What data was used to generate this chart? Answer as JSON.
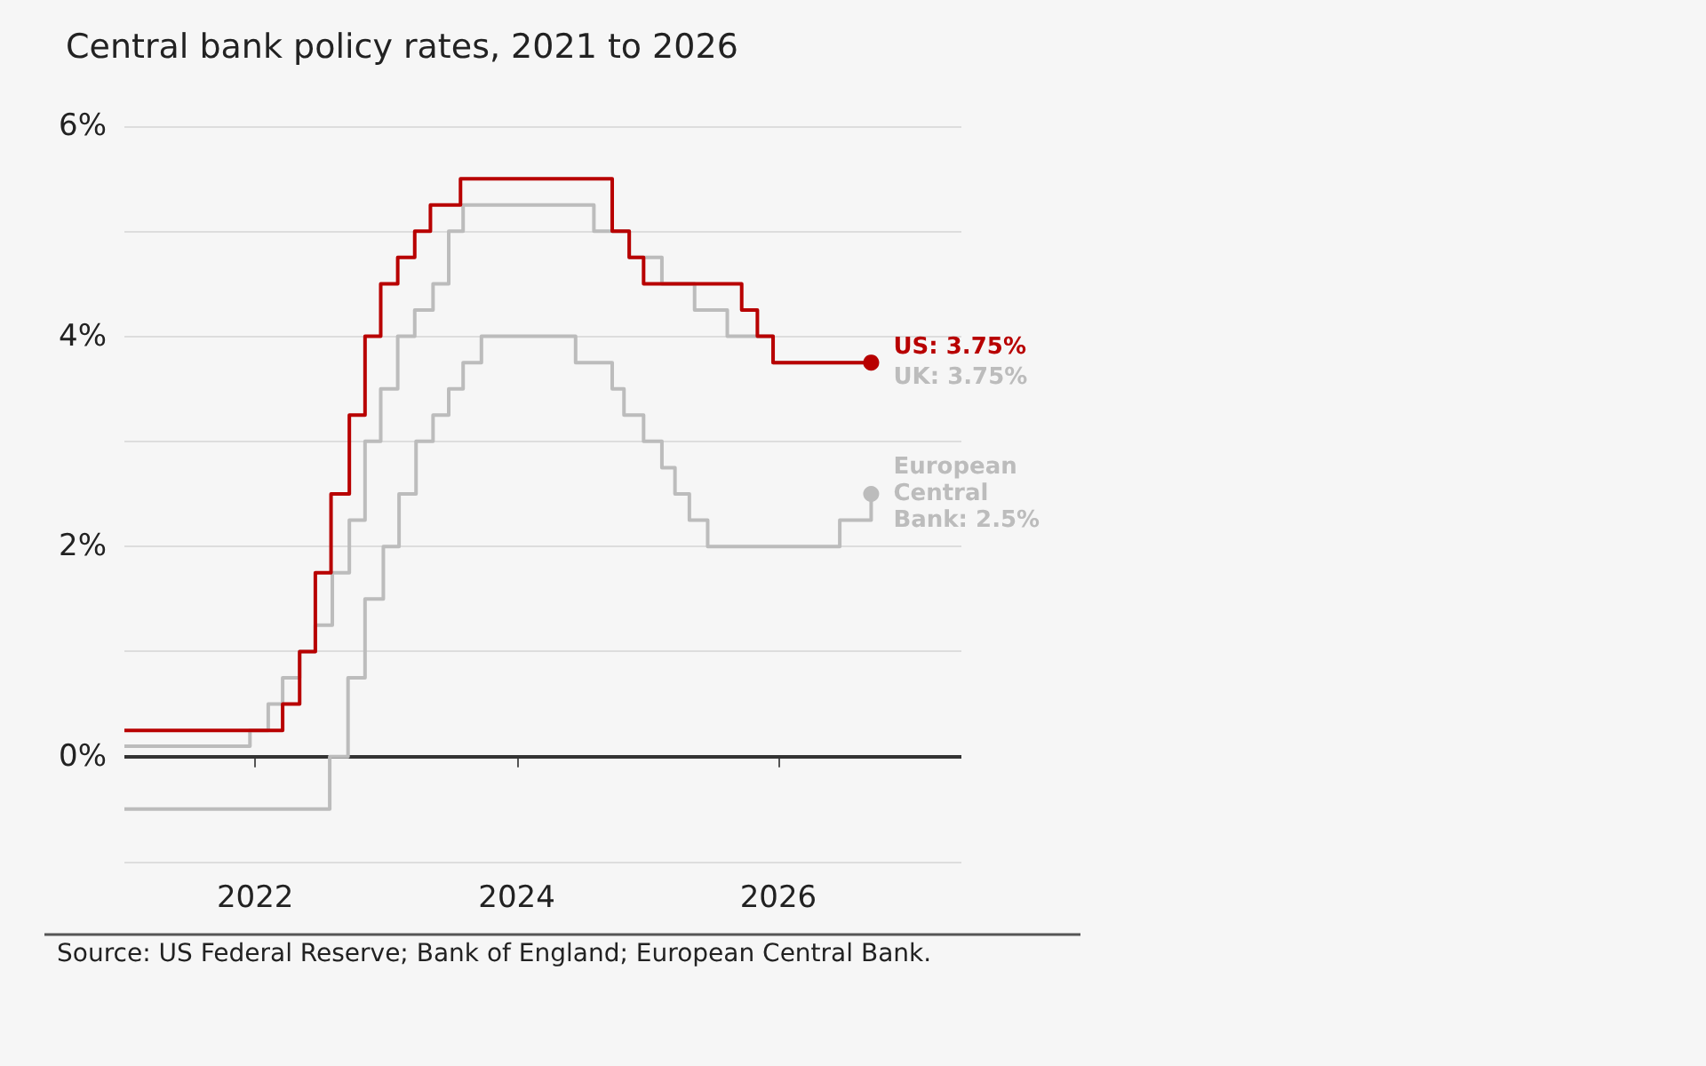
{
  "chart_data": {
    "type": "step",
    "title": "Central bank policy rates, 2021 to 2026",
    "annotations": [
      "Source: US Federal Reserve; Bank of England; European Central Bank."
    ],
    "xlim": [
      2021,
      2027.4
    ],
    "xticks": [
      2022,
      2024,
      2026
    ],
    "ylim": [
      -1,
      6
    ],
    "yticks": [
      {
        "value": 0,
        "label": "0%"
      },
      {
        "value": 2,
        "label": "2%"
      },
      {
        "value": 4,
        "label": "4%"
      },
      {
        "value": 6,
        "label": "6%"
      }
    ],
    "grid": "y",
    "legend": false,
    "ref_lines": [
      {
        "axis": "y",
        "value": 0,
        "color": "#333333"
      }
    ],
    "series": [
      {
        "name": "US:",
        "color": "#b80000",
        "x": [
          2021.0,
          2022.21,
          2022.34,
          2022.46,
          2022.58,
          2022.72,
          2022.84,
          2022.96,
          2023.09,
          2023.22,
          2023.34,
          2023.57,
          2024.73,
          2024.86,
          2024.97,
          2025.72,
          2025.84,
          2025.96,
          2026.71
        ],
        "values": [
          0.25,
          0.5,
          1.0,
          1.75,
          2.5,
          3.25,
          4.0,
          4.5,
          4.75,
          5.0,
          5.25,
          5.5,
          5.0,
          4.75,
          4.5,
          4.25,
          4.0,
          3.75,
          3.75
        ],
        "value_labels": [
          null,
          null,
          null,
          null,
          null,
          null,
          null,
          null,
          null,
          null,
          null,
          null,
          null,
          null,
          null,
          null,
          null,
          null,
          "3.75%"
        ]
      },
      {
        "name": "UK:",
        "color": "#bcbcbc",
        "x": [
          2021.0,
          2021.96,
          2022.1,
          2022.21,
          2022.34,
          2022.46,
          2022.59,
          2022.72,
          2022.84,
          2022.96,
          2023.09,
          2023.22,
          2023.36,
          2023.48,
          2023.59,
          2024.59,
          2024.86,
          2025.11,
          2025.36,
          2025.61,
          2025.96,
          2026.71
        ],
        "values": [
          0.1,
          0.25,
          0.5,
          0.75,
          1.0,
          1.25,
          1.75,
          2.25,
          3.0,
          3.5,
          4.0,
          4.25,
          4.5,
          5.0,
          5.25,
          5.0,
          4.75,
          4.5,
          4.25,
          4.0,
          3.75,
          3.75
        ],
        "value_labels": [
          null,
          null,
          null,
          null,
          null,
          null,
          null,
          null,
          null,
          null,
          null,
          null,
          null,
          null,
          null,
          null,
          null,
          null,
          null,
          null,
          null,
          "3.75%"
        ]
      },
      {
        "name": "European Central Bank:",
        "color": "#bcbcbc",
        "x": [
          2021.0,
          2022.57,
          2022.71,
          2022.84,
          2022.98,
          2023.1,
          2023.23,
          2023.36,
          2023.48,
          2023.59,
          2023.73,
          2024.45,
          2024.73,
          2024.82,
          2024.97,
          2025.11,
          2025.21,
          2025.32,
          2025.46,
          2026.47,
          2026.71
        ],
        "values": [
          -0.5,
          0.0,
          0.75,
          1.5,
          2.0,
          2.5,
          3.0,
          3.25,
          3.5,
          3.75,
          4.0,
          3.75,
          3.5,
          3.25,
          3.0,
          2.75,
          2.5,
          2.25,
          2.0,
          2.25,
          2.5
        ],
        "value_labels": [
          null,
          null,
          null,
          null,
          null,
          null,
          null,
          null,
          null,
          null,
          null,
          null,
          null,
          null,
          null,
          null,
          null,
          null,
          null,
          null,
          "2.5%"
        ]
      }
    ]
  }
}
